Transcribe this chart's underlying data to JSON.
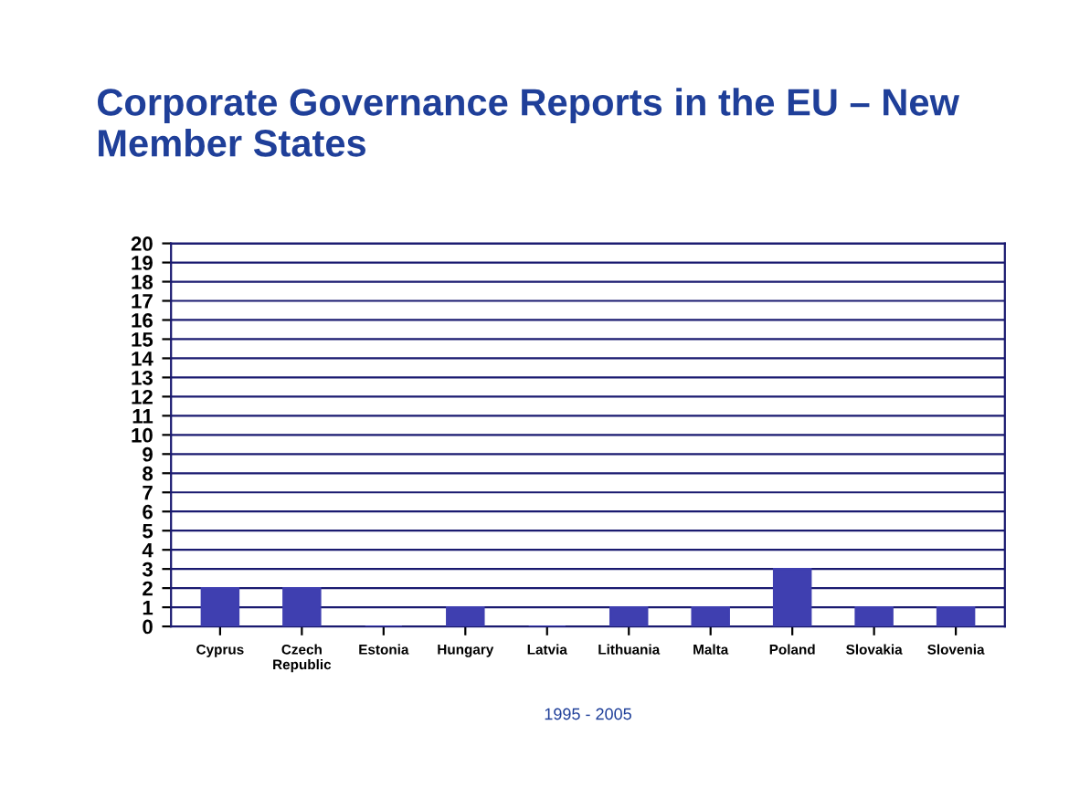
{
  "chart_data": {
    "type": "bar",
    "title": "Corporate Governance Reports in the EU – New Member States",
    "xlabel": "1995 - 2005",
    "categories": [
      "Cyprus",
      "Czech\nRepublic",
      "Estonia",
      "Hungary",
      "Latvia",
      "Lithuania",
      "Malta",
      "Poland",
      "Slovakia",
      "Slovenia"
    ],
    "values": [
      2,
      2,
      0,
      1,
      0,
      1,
      1,
      3,
      1,
      1
    ],
    "color": "#3f3fb0",
    "ylim": [
      0,
      20
    ],
    "yticks": [
      0,
      1,
      2,
      3,
      4,
      5,
      6,
      7,
      8,
      9,
      10,
      11,
      12,
      13,
      14,
      15,
      16,
      17,
      18,
      19,
      20
    ],
    "grid": "y"
  }
}
